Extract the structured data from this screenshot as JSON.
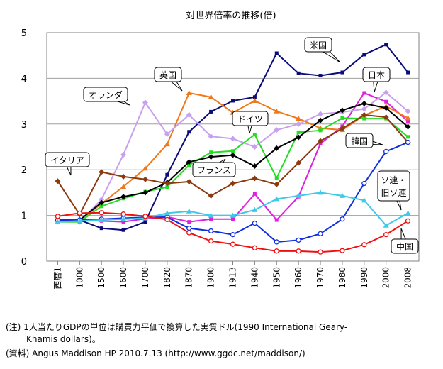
{
  "chart_data": {
    "type": "line",
    "title": "対世界倍率の推移(倍)",
    "categories": [
      "西暦1",
      "1000",
      "1500",
      "1600",
      "1700",
      "1820",
      "1870",
      "1900",
      "1913",
      "1940",
      "1950",
      "1960",
      "1970",
      "1980",
      "1990",
      "2000",
      "2008"
    ],
    "ylim": [
      0,
      5
    ],
    "yticks": [
      0,
      1,
      2,
      3,
      4,
      5
    ],
    "grid": "horizontal",
    "series": [
      {
        "name": "米国",
        "color": "#0b0b7a",
        "marker": "square",
        "values": [
          0.9,
          0.9,
          0.72,
          0.68,
          0.86,
          1.89,
          2.83,
          3.27,
          3.51,
          3.59,
          4.55,
          4.11,
          4.06,
          4.13,
          4.52,
          4.74,
          4.13
        ]
      },
      {
        "name": "日本",
        "color": "#e020e0",
        "marker": "square",
        "values": [
          0.9,
          0.9,
          0.88,
          0.86,
          0.93,
          0.97,
          0.86,
          0.92,
          0.92,
          1.47,
          0.9,
          1.41,
          2.57,
          2.95,
          3.68,
          3.49,
          3.06
        ]
      },
      {
        "name": "英国",
        "color": "#f07818",
        "marker": "triangle",
        "values": [
          0.86,
          0.88,
          1.26,
          1.63,
          2.03,
          2.56,
          3.68,
          3.59,
          3.25,
          3.51,
          3.28,
          3.12,
          2.91,
          2.87,
          3.19,
          3.39,
          3.13
        ]
      },
      {
        "name": "オランダ",
        "color": "#c8a0f0",
        "marker": "diamond",
        "values": [
          0.86,
          0.86,
          1.35,
          2.33,
          3.47,
          2.78,
          3.2,
          2.73,
          2.68,
          2.5,
          2.87,
          3.0,
          3.22,
          3.26,
          3.33,
          3.69,
          3.28
        ]
      },
      {
        "name": "ドイツ",
        "color": "#22dd22",
        "marker": "square",
        "values": [
          0.86,
          0.86,
          1.2,
          1.37,
          1.52,
          1.62,
          2.1,
          2.38,
          2.41,
          2.77,
          1.82,
          2.82,
          2.86,
          3.13,
          3.12,
          3.12,
          2.72
        ]
      },
      {
        "name": "フランス",
        "color": "#000000",
        "marker": "diamond",
        "values": [
          0.9,
          0.9,
          1.28,
          1.41,
          1.5,
          1.72,
          2.17,
          2.28,
          2.32,
          2.08,
          2.47,
          2.71,
          3.08,
          3.3,
          3.45,
          3.35,
          2.94
        ]
      },
      {
        "name": "イタリア",
        "color": "#8b3a0f",
        "marker": "diamond",
        "values": [
          1.75,
          1.02,
          1.95,
          1.85,
          1.79,
          1.7,
          1.74,
          1.43,
          1.7,
          1.81,
          1.68,
          2.15,
          2.63,
          2.9,
          3.2,
          3.15,
          2.6
        ]
      },
      {
        "name": "韓国",
        "color": "#1030e0",
        "marker": "circle",
        "values": [
          0.9,
          0.9,
          0.92,
          0.94,
          0.96,
          0.96,
          0.72,
          0.66,
          0.58,
          0.83,
          0.42,
          0.46,
          0.6,
          0.92,
          1.7,
          2.4,
          2.6
        ]
      },
      {
        "name": "ソ連・旧ソ連",
        "color": "#40c8e8",
        "marker": "triangle",
        "values": [
          0.86,
          0.88,
          0.9,
          0.92,
          0.94,
          1.05,
          1.09,
          1.0,
          1.0,
          1.12,
          1.36,
          1.43,
          1.5,
          1.43,
          1.33,
          0.78,
          1.05
        ]
      },
      {
        "name": "中国",
        "color": "#ee1111",
        "marker": "circle",
        "values": [
          0.98,
          1.05,
          1.06,
          1.03,
          0.98,
          0.91,
          0.62,
          0.44,
          0.37,
          0.29,
          0.22,
          0.22,
          0.2,
          0.23,
          0.36,
          0.58,
          0.88
        ]
      }
    ],
    "annotations": [
      {
        "text": "米国",
        "series": "米国"
      },
      {
        "text": "日本",
        "series": "日本"
      },
      {
        "text": "英国",
        "series": "英国"
      },
      {
        "text": "オランダ",
        "series": "オランダ"
      },
      {
        "text": "ドイツ",
        "series": "ドイツ"
      },
      {
        "text": "フランス",
        "series": "フランス"
      },
      {
        "text": "イタリア",
        "series": "イタリア"
      },
      {
        "text": "韓国",
        "series": "韓国"
      },
      {
        "text": "ソ連・",
        "text2": "旧ソ連",
        "series": "ソ連・旧ソ連"
      },
      {
        "text": "中国",
        "series": "中国"
      }
    ]
  },
  "notes": {
    "note_line1": "(注) 1人当たりGDPの単位は購買力平価で換算した実質ドル(1990 International Geary-",
    "note_line2": "Khamis dollars)。",
    "source": "(資料) Angus Maddison HP 2010.7.13 (http://www.ggdc.net/maddison/)"
  }
}
